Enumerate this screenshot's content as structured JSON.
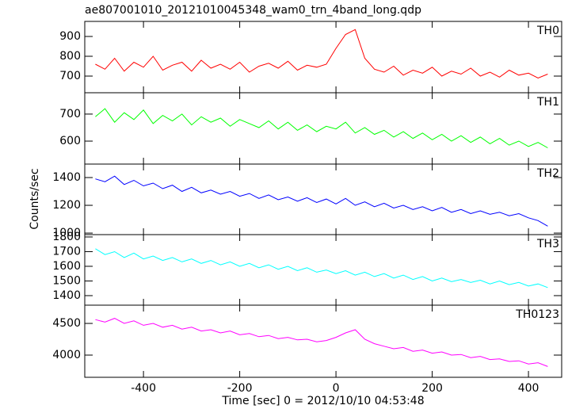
{
  "chart_data": {
    "type": "line",
    "title": "ae807001010_20121010045348_wam0_trn_4band_long.qdp",
    "xlabel": "Time [sec] 0 = 2012/10/10 04:53:48",
    "ylabel": "Counts/sec",
    "xlim": [
      -522,
      469
    ],
    "xticks": [
      -400,
      -200,
      0,
      200,
      400
    ],
    "x": [
      -500,
      -480,
      -460,
      -440,
      -420,
      -400,
      -380,
      -360,
      -340,
      -320,
      -300,
      -280,
      -260,
      -240,
      -220,
      -200,
      -180,
      -160,
      -140,
      -120,
      -100,
      -80,
      -60,
      -40,
      -20,
      0,
      20,
      40,
      60,
      80,
      100,
      120,
      140,
      160,
      180,
      200,
      220,
      240,
      260,
      280,
      300,
      320,
      340,
      360,
      380,
      400,
      420,
      440
    ],
    "series": [
      {
        "name": "TH0",
        "color": "#ff0000",
        "ylim": [
          616,
          976
        ],
        "yticks": [
          700,
          800,
          900
        ],
        "values": [
          760,
          735,
          790,
          725,
          770,
          745,
          800,
          730,
          755,
          770,
          725,
          780,
          740,
          760,
          735,
          770,
          720,
          750,
          765,
          740,
          775,
          730,
          755,
          745,
          760,
          840,
          910,
          935,
          790,
          735,
          720,
          750,
          705,
          730,
          715,
          745,
          700,
          725,
          710,
          740,
          700,
          720,
          695,
          730,
          705,
          715,
          690,
          710
        ]
      },
      {
        "name": "TH1",
        "color": "#00ff00",
        "ylim": [
          515,
          779
        ],
        "yticks": [
          600,
          700
        ],
        "values": [
          690,
          720,
          670,
          705,
          680,
          715,
          665,
          695,
          675,
          700,
          660,
          690,
          670,
          685,
          655,
          680,
          665,
          650,
          675,
          645,
          670,
          640,
          660,
          635,
          655,
          645,
          670,
          630,
          650,
          625,
          640,
          615,
          635,
          610,
          630,
          605,
          625,
          600,
          620,
          595,
          615,
          590,
          610,
          585,
          600,
          580,
          595,
          575
        ]
      },
      {
        "name": "TH2",
        "color": "#0000ff",
        "ylim": [
          989,
          1497
        ],
        "yticks": [
          1000,
          1200,
          1400
        ],
        "values": [
          1390,
          1370,
          1410,
          1350,
          1380,
          1340,
          1360,
          1320,
          1345,
          1300,
          1330,
          1290,
          1310,
          1280,
          1300,
          1265,
          1285,
          1250,
          1275,
          1240,
          1260,
          1230,
          1255,
          1220,
          1245,
          1210,
          1250,
          1200,
          1225,
          1190,
          1215,
          1180,
          1200,
          1170,
          1190,
          1160,
          1185,
          1150,
          1170,
          1140,
          1160,
          1135,
          1150,
          1125,
          1140,
          1110,
          1090,
          1050
        ]
      },
      {
        "name": "TH3",
        "color": "#00ffff",
        "ylim": [
          1335,
          1816
        ],
        "yticks": [
          1400,
          1500,
          1600,
          1700,
          1800
        ],
        "values": [
          1720,
          1680,
          1700,
          1660,
          1690,
          1650,
          1670,
          1640,
          1660,
          1630,
          1650,
          1620,
          1640,
          1610,
          1630,
          1600,
          1620,
          1590,
          1610,
          1580,
          1600,
          1570,
          1590,
          1560,
          1575,
          1550,
          1570,
          1540,
          1560,
          1530,
          1550,
          1520,
          1540,
          1510,
          1530,
          1500,
          1520,
          1495,
          1510,
          1490,
          1505,
          1480,
          1500,
          1475,
          1490,
          1465,
          1480,
          1455
        ]
      },
      {
        "name": "TH0123",
        "color": "#ff00ff",
        "ylim": [
          3650,
          4788
        ],
        "yticks": [
          4000,
          4500
        ],
        "values": [
          4560,
          4520,
          4580,
          4500,
          4540,
          4470,
          4500,
          4440,
          4470,
          4410,
          4440,
          4380,
          4400,
          4350,
          4380,
          4320,
          4340,
          4290,
          4310,
          4260,
          4280,
          4240,
          4250,
          4210,
          4230,
          4280,
          4350,
          4400,
          4250,
          4180,
          4140,
          4100,
          4120,
          4060,
          4080,
          4030,
          4050,
          4000,
          4010,
          3960,
          3980,
          3930,
          3940,
          3900,
          3910,
          3860,
          3880,
          3820
        ]
      }
    ]
  }
}
